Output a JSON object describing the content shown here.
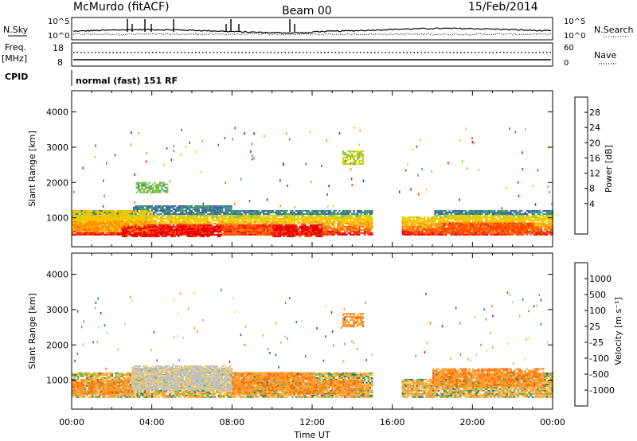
{
  "header": {
    "station": "McMurdo (fitACF)",
    "beam": "Beam 00",
    "date": "15/Feb/2014"
  },
  "top_panels": {
    "nsky_label": "N.Sky",
    "nsky_ticks": [
      "10^5",
      "10^0"
    ],
    "nsearch_label": "N.Search",
    "nsearch_ticks": [
      "10^5",
      "10^0"
    ],
    "freq_label": "Freq.",
    "freq_unit": "[MHz]",
    "freq_ticks": [
      "18",
      "8"
    ],
    "nave_label": "Nave",
    "nave_ticks": [
      "60",
      "0"
    ],
    "cpid_label": "CPID",
    "cpid_text": "normal (fast) 151 RF"
  },
  "chart_data": [
    {
      "type": "heatmap",
      "name": "power",
      "ylabel": "Slant Range [km]",
      "ylim": [
        180,
        4600
      ],
      "yticks": [
        "4000",
        "3000",
        "2000",
        "1000"
      ],
      "xlim": [
        0,
        24
      ],
      "colorbar": {
        "label": "Power [dB]",
        "ticks": [
          "28",
          "24",
          "20",
          "16",
          "12",
          "8",
          "4"
        ],
        "colors": [
          "#e80000",
          "#ff4a00",
          "#ff8c00",
          "#ffc000",
          "#d8d000",
          "#7cc040",
          "#3a9a6a",
          "#3a5aa8",
          "#0020ff"
        ]
      },
      "blocks": [
        {
          "t0": 0.0,
          "t1": 4.0,
          "r0": 900,
          "r1": 1200,
          "c": 3
        },
        {
          "t0": 0.0,
          "t1": 4.0,
          "r0": 600,
          "r1": 900,
          "c": 2
        },
        {
          "t0": 2.5,
          "t1": 7.5,
          "r0": 450,
          "r1": 750,
          "c": 0
        },
        {
          "t0": 7.5,
          "t1": 10.0,
          "r0": 500,
          "r1": 800,
          "c": 1
        },
        {
          "t0": 10.0,
          "t1": 12.5,
          "r0": 450,
          "r1": 750,
          "c": 0
        },
        {
          "t0": 13.5,
          "t1": 14.5,
          "r0": 2500,
          "r1": 2900,
          "c": 4
        },
        {
          "t0": 18.5,
          "t1": 23.0,
          "r0": 550,
          "r1": 850,
          "c": 1
        },
        {
          "t0": 3.2,
          "t1": 4.8,
          "r0": 1700,
          "r1": 2000,
          "c": 5
        }
      ]
    },
    {
      "type": "heatmap",
      "name": "velocity",
      "ylabel": "Slant Range [km]",
      "ylim": [
        180,
        4600
      ],
      "yticks": [
        "4000",
        "3000",
        "2000",
        "1000"
      ],
      "xlabel": "Time UT",
      "xlim": [
        0,
        24
      ],
      "xticks": [
        "00:00",
        "04:00",
        "08:00",
        "12:00",
        "16:00",
        "20:00",
        "00:00"
      ],
      "colorbar": {
        "label": "Velocity [m s⁻¹]",
        "ticks": [
          "1000",
          "500",
          "100",
          "25",
          "-25",
          "-100",
          "-500",
          "-1000"
        ],
        "colors": [
          "#2050c0",
          "#2a7a6a",
          "#48b848",
          "#8ad848",
          "#c0c0c0",
          "#ffd060",
          "#ff9c30",
          "#ff6a00",
          "#e80000"
        ]
      },
      "blocks": [
        {
          "t0": 0.0,
          "t1": 3.0,
          "r0": 600,
          "r1": 1000,
          "c": 6
        },
        {
          "t0": 3.0,
          "t1": 8.0,
          "r0": 700,
          "r1": 1400,
          "c": 4
        },
        {
          "t0": 8.0,
          "t1": 12.0,
          "r0": 600,
          "r1": 1200,
          "c": 6
        },
        {
          "t0": 12.0,
          "t1": 14.5,
          "r0": 600,
          "r1": 1000,
          "c": 6
        },
        {
          "t0": 13.5,
          "t1": 14.5,
          "r0": 2500,
          "r1": 2900,
          "c": 6
        },
        {
          "t0": 18.0,
          "t1": 23.5,
          "r0": 800,
          "r1": 1300,
          "c": 6
        }
      ]
    }
  ]
}
